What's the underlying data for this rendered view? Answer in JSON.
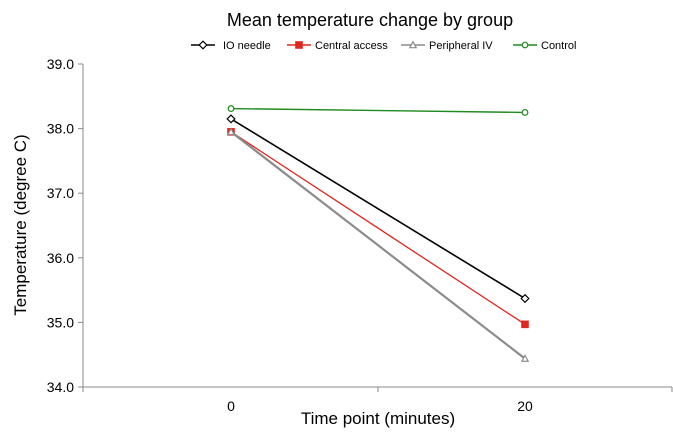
{
  "chart_data": {
    "type": "line",
    "title": "Mean temperature change by group",
    "xlabel": "Time point (minutes)",
    "ylabel": "Temperature (degree C)",
    "x": [
      0,
      20
    ],
    "x_tick_labels": [
      "0",
      "20"
    ],
    "ylim": [
      34.0,
      39.0
    ],
    "y_ticks": [
      "34.0",
      "35.0",
      "36.0",
      "37.0",
      "38.0",
      "39.0"
    ],
    "grid": false,
    "legend_position": "top",
    "series": [
      {
        "name": "IO needle",
        "values": [
          38.15,
          35.37
        ],
        "color": "#000000",
        "marker": "diamond"
      },
      {
        "name": "Central access",
        "values": [
          37.95,
          34.97
        ],
        "color": "#e2261f",
        "marker": "square"
      },
      {
        "name": "Peripheral IV",
        "values": [
          37.95,
          34.44
        ],
        "color": "#8c8c8c",
        "marker": "triangle"
      },
      {
        "name": "Control",
        "values": [
          38.31,
          38.25
        ],
        "color": "#1f8a1f",
        "marker": "circle"
      }
    ]
  }
}
